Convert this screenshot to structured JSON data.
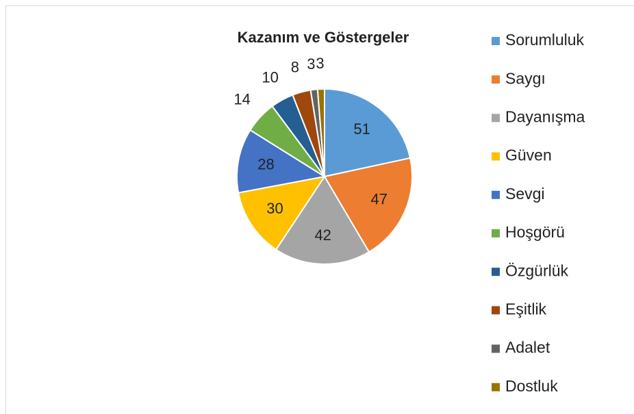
{
  "chart_data": {
    "type": "pie",
    "title": "Kazanım ve Göstergeler",
    "categories": [
      "Sorumluluk",
      "Saygı",
      "Dayanışma",
      "Güven",
      "Sevgi",
      "Hoşgörü",
      "Özgürlük",
      "Eşitlik",
      "Adalet",
      "Dostluk"
    ],
    "values": [
      51,
      47,
      42,
      30,
      28,
      14,
      10,
      8,
      3,
      3
    ],
    "colors": [
      "#5b9bd5",
      "#ed7d31",
      "#a5a5a5",
      "#ffc000",
      "#4472c4",
      "#70ad47",
      "#255e91",
      "#9e480e",
      "#636363",
      "#997300"
    ],
    "legend": "right"
  }
}
